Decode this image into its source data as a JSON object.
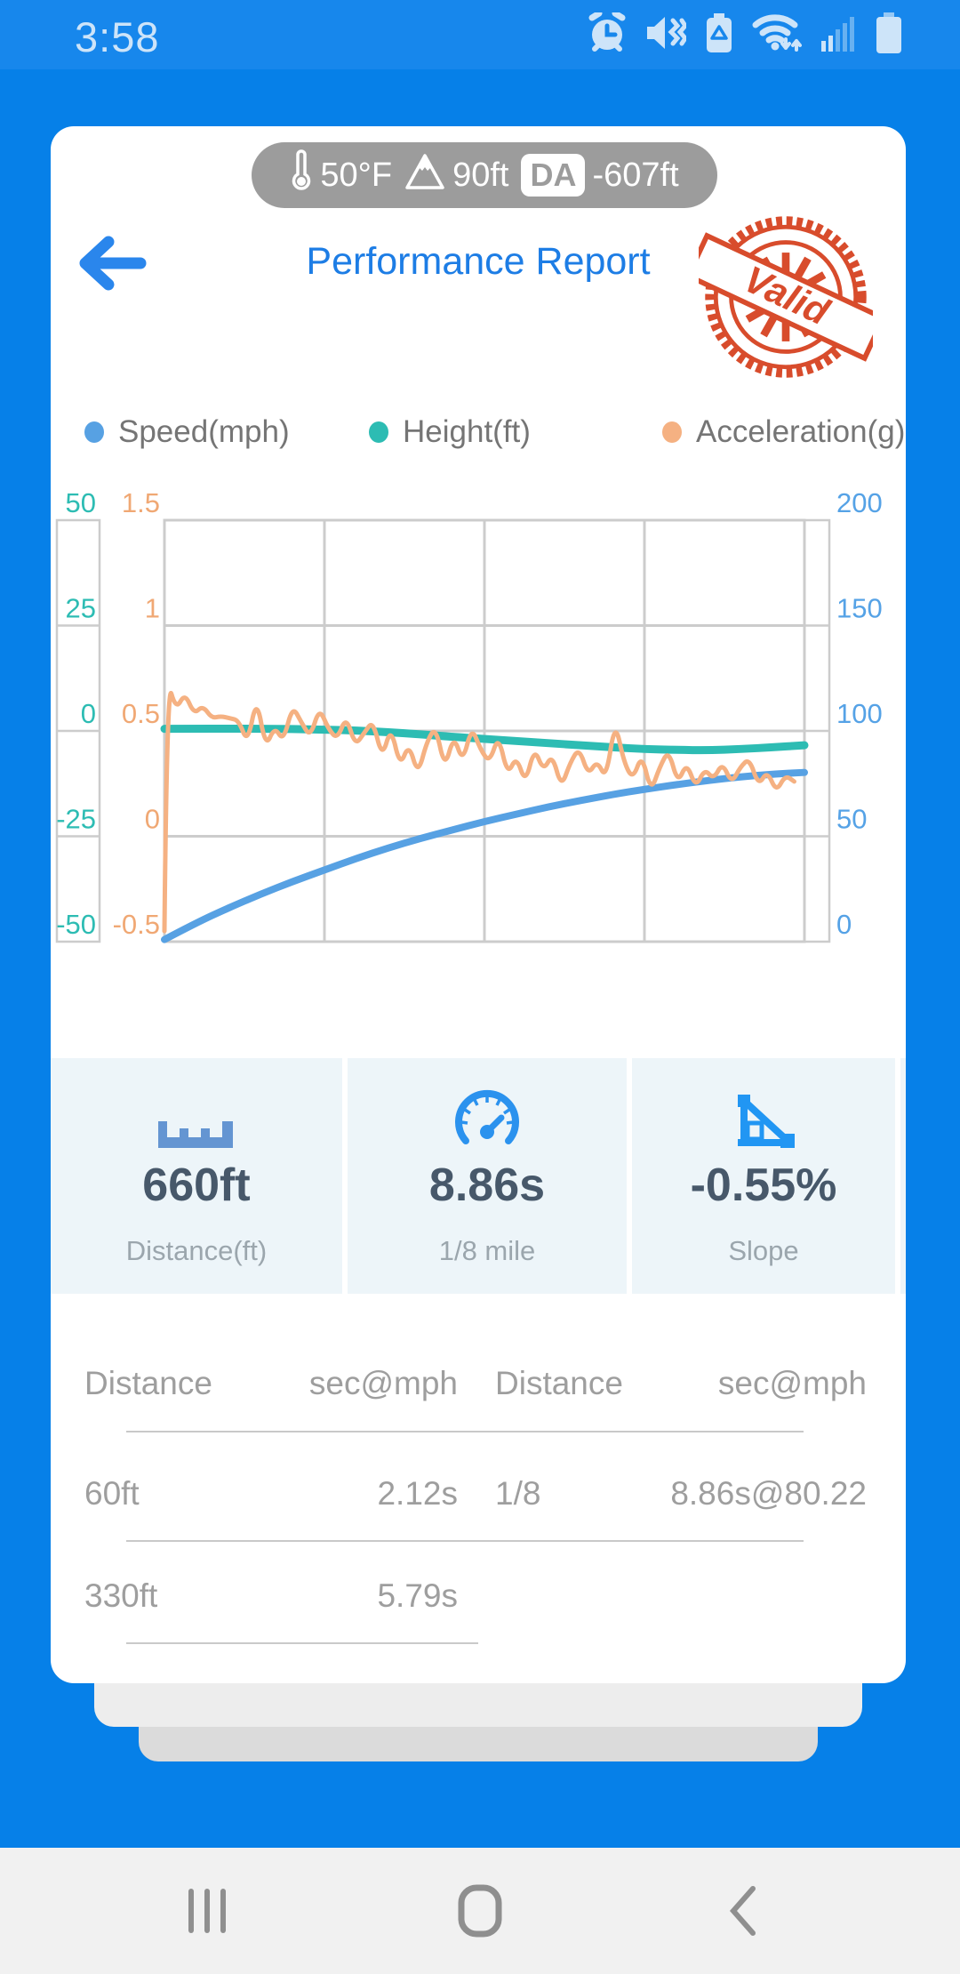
{
  "status_bar": {
    "time": "3:58"
  },
  "header": {
    "pill": {
      "temperature": "50°F",
      "elevation": "90ft",
      "da_label": "DA",
      "da_value": "-607ft"
    },
    "title": "Performance Report",
    "stamp_text": "Valid"
  },
  "legend": [
    {
      "label": "Speed(mph)",
      "color": "#57a1e3"
    },
    {
      "label": "Height(ft)",
      "color": "#2dbcb3"
    },
    {
      "label": "Acceleration(g)",
      "color": "#f5b182"
    }
  ],
  "chart_data": {
    "type": "line",
    "title": "",
    "xlabel": "",
    "x_range": [
      0,
      1
    ],
    "x_tick_labels": [],
    "grid": true,
    "y_axes": [
      {
        "id": "height",
        "position": "far-left",
        "color": "#2dbcb3",
        "range": [
          -50,
          50
        ],
        "ticks": [
          50,
          25,
          0,
          -25,
          -50
        ]
      },
      {
        "id": "acceleration",
        "position": "left",
        "color": "#f0a874",
        "range": [
          -0.5,
          1.5
        ],
        "ticks": [
          1.5,
          1,
          0.5,
          0,
          -0.5
        ]
      },
      {
        "id": "speed",
        "position": "right",
        "color": "#55a2e6",
        "range": [
          0,
          200
        ],
        "ticks": [
          200,
          150,
          100,
          50,
          0
        ]
      }
    ],
    "series": [
      {
        "name": "Speed(mph)",
        "axis": "speed",
        "color": "#57a1e3",
        "width": 8,
        "points": [
          [
            0,
            1
          ],
          [
            0.05,
            9
          ],
          [
            0.1,
            16
          ],
          [
            0.15,
            22.5
          ],
          [
            0.2,
            28.5
          ],
          [
            0.25,
            34
          ],
          [
            0.3,
            39.5
          ],
          [
            0.35,
            44.5
          ],
          [
            0.4,
            49
          ],
          [
            0.45,
            53
          ],
          [
            0.5,
            57
          ],
          [
            0.55,
            60.5
          ],
          [
            0.6,
            64
          ],
          [
            0.65,
            67
          ],
          [
            0.7,
            69.8
          ],
          [
            0.75,
            72.3
          ],
          [
            0.8,
            74.5
          ],
          [
            0.85,
            76.5
          ],
          [
            0.9,
            78.2
          ],
          [
            0.95,
            79.5
          ],
          [
            1,
            80.3
          ]
        ]
      },
      {
        "name": "Height(ft)",
        "axis": "height",
        "color": "#2dbcb3",
        "width": 9,
        "points": [
          [
            0,
            0.5
          ],
          [
            0.05,
            0.5
          ],
          [
            0.1,
            0.55
          ],
          [
            0.15,
            0.5
          ],
          [
            0.2,
            0.45
          ],
          [
            0.25,
            0.3
          ],
          [
            0.3,
            0.1
          ],
          [
            0.35,
            -0.3
          ],
          [
            0.4,
            -0.8
          ],
          [
            0.45,
            -1.4
          ],
          [
            0.5,
            -1.9
          ],
          [
            0.55,
            -2.4
          ],
          [
            0.6,
            -2.9
          ],
          [
            0.65,
            -3.4
          ],
          [
            0.7,
            -3.9
          ],
          [
            0.75,
            -4.3
          ],
          [
            0.8,
            -4.5
          ],
          [
            0.85,
            -4.6
          ],
          [
            0.9,
            -4.3
          ],
          [
            0.95,
            -3.9
          ],
          [
            1,
            -3.4
          ]
        ]
      },
      {
        "name": "Acceleration(g)",
        "axis": "acceleration",
        "color": "#f5b182",
        "width": 5,
        "points": [
          [
            0,
            -0.45
          ],
          [
            0.004,
            0.75
          ],
          [
            0.018,
            0.6
          ],
          [
            0.032,
            0.68
          ],
          [
            0.046,
            0.58
          ],
          [
            0.06,
            0.62
          ],
          [
            0.074,
            0.56
          ],
          [
            0.088,
            0.57
          ],
          [
            0.102,
            0.56
          ],
          [
            0.116,
            0.55
          ],
          [
            0.13,
            0.44
          ],
          [
            0.144,
            0.66
          ],
          [
            0.158,
            0.42
          ],
          [
            0.172,
            0.52
          ],
          [
            0.186,
            0.45
          ],
          [
            0.2,
            0.62
          ],
          [
            0.214,
            0.54
          ],
          [
            0.228,
            0.47
          ],
          [
            0.242,
            0.61
          ],
          [
            0.256,
            0.51
          ],
          [
            0.27,
            0.46
          ],
          [
            0.284,
            0.57
          ],
          [
            0.298,
            0.43
          ],
          [
            0.312,
            0.49
          ],
          [
            0.326,
            0.55
          ],
          [
            0.34,
            0.37
          ],
          [
            0.354,
            0.52
          ],
          [
            0.368,
            0.33
          ],
          [
            0.382,
            0.44
          ],
          [
            0.396,
            0.29
          ],
          [
            0.41,
            0.45
          ],
          [
            0.424,
            0.52
          ],
          [
            0.438,
            0.32
          ],
          [
            0.452,
            0.48
          ],
          [
            0.466,
            0.35
          ],
          [
            0.48,
            0.52
          ],
          [
            0.494,
            0.41
          ],
          [
            0.508,
            0.35
          ],
          [
            0.522,
            0.48
          ],
          [
            0.536,
            0.29
          ],
          [
            0.55,
            0.38
          ],
          [
            0.564,
            0.25
          ],
          [
            0.578,
            0.42
          ],
          [
            0.592,
            0.31
          ],
          [
            0.606,
            0.39
          ],
          [
            0.62,
            0.23
          ],
          [
            0.634,
            0.35
          ],
          [
            0.648,
            0.42
          ],
          [
            0.662,
            0.29
          ],
          [
            0.676,
            0.36
          ],
          [
            0.69,
            0.27
          ],
          [
            0.704,
            0.55
          ],
          [
            0.718,
            0.35
          ],
          [
            0.732,
            0.27
          ],
          [
            0.746,
            0.39
          ],
          [
            0.76,
            0.21
          ],
          [
            0.774,
            0.33
          ],
          [
            0.788,
            0.41
          ],
          [
            0.802,
            0.25
          ],
          [
            0.816,
            0.35
          ],
          [
            0.83,
            0.23
          ],
          [
            0.844,
            0.32
          ],
          [
            0.858,
            0.27
          ],
          [
            0.872,
            0.35
          ],
          [
            0.886,
            0.25
          ],
          [
            0.9,
            0.33
          ],
          [
            0.914,
            0.37
          ],
          [
            0.928,
            0.24
          ],
          [
            0.942,
            0.31
          ],
          [
            0.956,
            0.21
          ],
          [
            0.97,
            0.29
          ],
          [
            0.984,
            0.26
          ]
        ]
      }
    ]
  },
  "stats": [
    {
      "icon": "ruler-icon",
      "value": "660ft",
      "label": "Distance(ft)"
    },
    {
      "icon": "speedometer-icon",
      "value": "8.86s",
      "label": "1/8 mile"
    },
    {
      "icon": "slope-icon",
      "value": "-0.55%",
      "label": "Slope"
    }
  ],
  "table": {
    "headers": {
      "col1": "Distance",
      "col2": "sec@mph",
      "col3": "Distance",
      "col4": "sec@mph"
    },
    "rows": [
      {
        "left_label": "60ft",
        "left_value": "2.12s",
        "right_label": "1/8",
        "right_value": "8.86s@80.22"
      },
      {
        "left_label": "330ft",
        "left_value": "5.79s",
        "right_label": "",
        "right_value": ""
      }
    ]
  },
  "colors": {
    "accent_blue": "#1d7de5",
    "screen_bg": "#0680e8",
    "statusbar_bg": "#1787ec",
    "pill_bg": "#9c9c9c",
    "stamp_red": "#d84c2c",
    "stats_bg": "#edf5f9",
    "stat_value": "#47586a",
    "label_gray": "#9ba6ad",
    "table_gray": "#9e9e9e",
    "dot_blue": "#1e9ae8",
    "gridline": "#cccccc",
    "navbar_bg": "#f1f1f1",
    "nav_icon": "#8f8f8f"
  }
}
